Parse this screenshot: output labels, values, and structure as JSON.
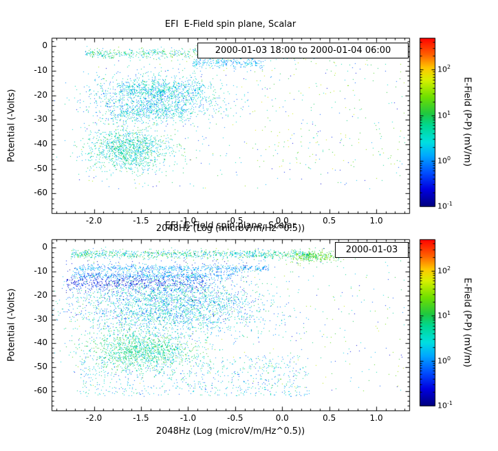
{
  "chart_data": {
    "type": "scatter",
    "seed": 20000103,
    "colormap": {
      "scale": "log",
      "stops": [
        [
          0.0,
          "#000080"
        ],
        [
          0.1,
          "#0000e0"
        ],
        [
          0.2,
          "#0050ff"
        ],
        [
          0.3,
          "#00a8ff"
        ],
        [
          0.38,
          "#00e0e0"
        ],
        [
          0.48,
          "#00d890"
        ],
        [
          0.55,
          "#20c840"
        ],
        [
          0.65,
          "#70e000"
        ],
        [
          0.75,
          "#d8f000"
        ],
        [
          0.82,
          "#ffc800"
        ],
        [
          0.9,
          "#ff6000"
        ],
        [
          1.0,
          "#ff0000"
        ]
      ]
    },
    "charts": [
      {
        "title": "EFI  E-Field spin plane, Scalar",
        "xlabel": "2048Hz (Log (microV/m/Hz^0.5))",
        "ylabel": "Potential (-Volts)",
        "legend": "2000-01-03 18:00 to 2000-01-04 06:00",
        "xlim": [
          -2.45,
          1.35
        ],
        "ylim": [
          3.5,
          -68
        ],
        "xticks": [
          -2.0,
          -1.5,
          -1.0,
          -0.5,
          0.0,
          0.5,
          1.0
        ],
        "xtick_labels": [
          "-2.0",
          "-1.5",
          "-1.0",
          "-0.5",
          "0.0",
          "0.5",
          "1.0"
        ],
        "yticks": [
          0,
          -10,
          -20,
          -30,
          -40,
          -50,
          -60
        ],
        "ytick_labels": [
          "0",
          "-10",
          "-20",
          "-30",
          "-40",
          "-50",
          "-60"
        ],
        "x_minor_step": 0.1,
        "y_minor_step": 2,
        "colorbar": {
          "label": "E-Field (P-P) (mV/m)",
          "min": 0.1,
          "max": 500,
          "ticks": [
            {
              "value": 0.1,
              "base": "10",
              "exp": "-1"
            },
            {
              "value": 1,
              "base": "10",
              "exp": "0"
            },
            {
              "value": 10,
              "base": "10",
              "exp": "1"
            },
            {
              "value": 100,
              "base": "10",
              "exp": "2"
            }
          ]
        },
        "clusters": [
          {
            "n": 800,
            "x": {
              "dist": "uniform",
              "a": -2.1,
              "b": 0.4
            },
            "y": {
              "dist": "gauss",
              "a": -2.8,
              "b": 1.0
            },
            "v": {
              "dist": "loguniform",
              "a": 0.8,
              "b": 25
            }
          },
          {
            "n": 250,
            "x": {
              "dist": "uniform",
              "a": -0.95,
              "b": -0.2
            },
            "y": {
              "dist": "gauss",
              "a": -6.5,
              "b": 1.2
            },
            "v": {
              "dist": "loguniform",
              "a": 0.6,
              "b": 3
            }
          },
          {
            "n": 1400,
            "x": {
              "dist": "gauss",
              "a": -1.35,
              "b": 0.35
            },
            "y": {
              "dist": "gauss",
              "a": -21,
              "b": 5
            },
            "v": {
              "dist": "loguniform",
              "a": 0.5,
              "b": 8
            }
          },
          {
            "n": 300,
            "x": {
              "dist": "uniform",
              "a": -1.75,
              "b": -0.85
            },
            "y": {
              "dist": "gauss",
              "a": -17,
              "b": 1.5
            },
            "v": {
              "dist": "loguniform",
              "a": 0.8,
              "b": 8
            }
          },
          {
            "n": 250,
            "x": {
              "dist": "uniform",
              "a": -1.85,
              "b": -1.05
            },
            "y": {
              "dist": "gauss",
              "a": -27,
              "b": 1.5
            },
            "v": {
              "dist": "loguniform",
              "a": 0.8,
              "b": 8
            }
          },
          {
            "n": 1300,
            "x": {
              "dist": "gauss",
              "a": -1.62,
              "b": 0.22
            },
            "y": {
              "dist": "gauss",
              "a": -42,
              "b": 4.5
            },
            "v": {
              "dist": "loguniform",
              "a": 1,
              "b": 15
            }
          },
          {
            "n": 400,
            "x": {
              "dist": "uniform",
              "a": -2.2,
              "b": 1.3
            },
            "y": {
              "dist": "uniform",
              "a": -58,
              "b": 0
            },
            "v": {
              "dist": "loguniform",
              "a": 0.2,
              "b": 60
            }
          },
          {
            "n": 120,
            "x": {
              "dist": "uniform",
              "a": -0.3,
              "b": 1.3
            },
            "y": {
              "dist": "uniform",
              "a": -50,
              "b": -2
            },
            "v": {
              "dist": "loguniform",
              "a": 3,
              "b": 80
            }
          }
        ]
      },
      {
        "title": "EFI  E-Field spin plane, Scalar",
        "xlabel": "2048Hz (Log (microV/m/Hz^0.5))",
        "ylabel": "Potential (-Volts)",
        "legend": "2000-01-03",
        "xlim": [
          -2.45,
          1.35
        ],
        "ylim": [
          3.5,
          -68
        ],
        "xticks": [
          -2.0,
          -1.5,
          -1.0,
          -0.5,
          0.0,
          0.5,
          1.0
        ],
        "xtick_labels": [
          "-2.0",
          "-1.5",
          "-1.0",
          "-0.5",
          "0.0",
          "0.5",
          "1.0"
        ],
        "yticks": [
          0,
          -10,
          -20,
          -30,
          -40,
          -50,
          -60
        ],
        "ytick_labels": [
          "0",
          "-10",
          "-20",
          "-30",
          "-40",
          "-50",
          "-60"
        ],
        "x_minor_step": 0.1,
        "y_minor_step": 2,
        "colorbar": {
          "label": "E-Field (P-P) (mV/m)",
          "min": 0.1,
          "max": 500,
          "ticks": [
            {
              "value": 0.1,
              "base": "10",
              "exp": "-1"
            },
            {
              "value": 1,
              "base": "10",
              "exp": "0"
            },
            {
              "value": 10,
              "base": "10",
              "exp": "1"
            },
            {
              "value": 100,
              "base": "10",
              "exp": "2"
            }
          ]
        },
        "clusters": [
          {
            "n": 900,
            "x": {
              "dist": "uniform",
              "a": -2.25,
              "b": 0.3
            },
            "y": {
              "dist": "gauss",
              "a": -2.6,
              "b": 0.9
            },
            "v": {
              "dist": "loguniform",
              "a": 0.8,
              "b": 20
            }
          },
          {
            "n": 350,
            "x": {
              "dist": "gauss",
              "a": 0.35,
              "b": 0.15
            },
            "y": {
              "dist": "gauss",
              "a": -3.5,
              "b": 1.2
            },
            "v": {
              "dist": "loguniform",
              "a": 5,
              "b": 40
            }
          },
          {
            "n": 500,
            "x": {
              "dist": "uniform",
              "a": -2.2,
              "b": -0.15
            },
            "y": {
              "dist": "gauss",
              "a": -8.5,
              "b": 0.7
            },
            "v": {
              "dist": "loguniform",
              "a": 0.5,
              "b": 2.5
            }
          },
          {
            "n": 450,
            "x": {
              "dist": "uniform",
              "a": -2.25,
              "b": -0.5
            },
            "y": {
              "dist": "gauss",
              "a": -11.5,
              "b": 0.8
            },
            "v": {
              "dist": "loguniform",
              "a": 0.5,
              "b": 2.5
            }
          },
          {
            "n": 550,
            "x": {
              "dist": "uniform",
              "a": -2.3,
              "b": -0.8
            },
            "y": {
              "dist": "gauss",
              "a": -14.5,
              "b": 1.8
            },
            "v": {
              "dist": "loguniform",
              "a": 0.12,
              "b": 0.6
            }
          },
          {
            "n": 250,
            "x": {
              "dist": "uniform",
              "a": -2.3,
              "b": -0.3
            },
            "y": {
              "dist": "uniform",
              "a": -30,
              "b": -5
            },
            "v": {
              "dist": "loguniform",
              "a": 0.1,
              "b": 0.5
            }
          },
          {
            "n": 2600,
            "x": {
              "dist": "gauss",
              "a": -1.2,
              "b": 0.5
            },
            "y": {
              "dist": "gauss",
              "a": -24,
              "b": 7
            },
            "v": {
              "dist": "loguniform",
              "a": 0.5,
              "b": 10
            }
          },
          {
            "n": 1300,
            "x": {
              "dist": "gauss",
              "a": -1.5,
              "b": 0.28
            },
            "y": {
              "dist": "gauss",
              "a": -43,
              "b": 4
            },
            "v": {
              "dist": "loguniform",
              "a": 1.5,
              "b": 20
            }
          },
          {
            "n": 700,
            "x": {
              "dist": "uniform",
              "a": -2.15,
              "b": 0.3
            },
            "y": {
              "dist": "uniform",
              "a": -62,
              "b": -45
            },
            "v": {
              "dist": "loguniform",
              "a": 0.5,
              "b": 8
            }
          },
          {
            "n": 500,
            "x": {
              "dist": "uniform",
              "a": -2.3,
              "b": 1.3
            },
            "y": {
              "dist": "uniform",
              "a": -60,
              "b": 0
            },
            "v": {
              "dist": "loguniform",
              "a": 0.2,
              "b": 60
            }
          }
        ]
      }
    ]
  }
}
